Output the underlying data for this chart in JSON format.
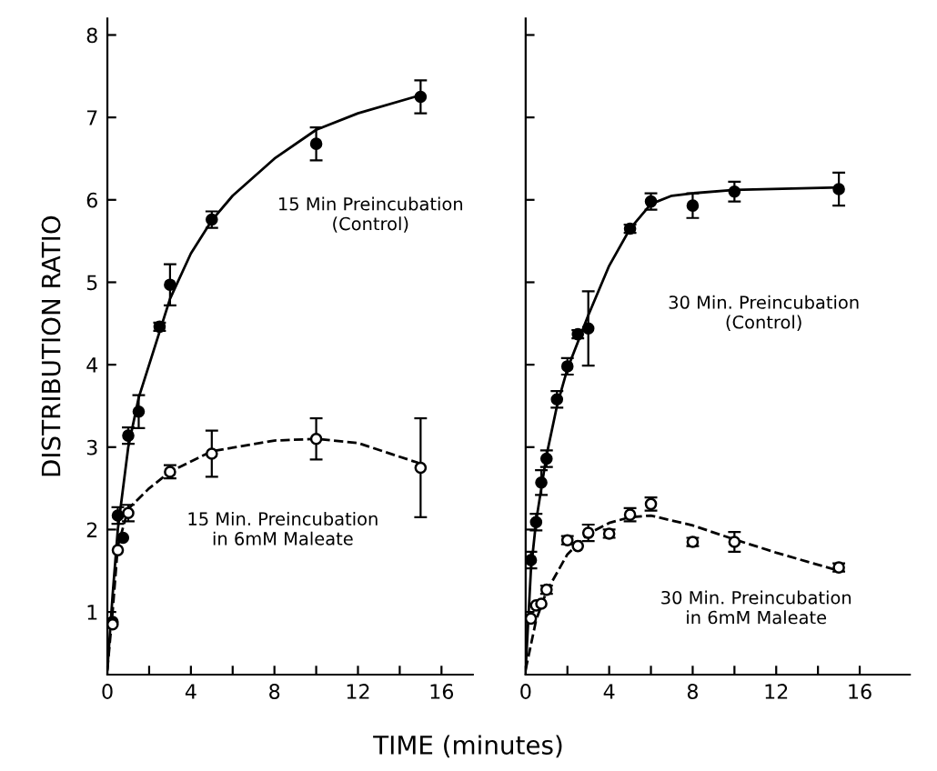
{
  "chart_data": [
    {
      "type": "scatter",
      "ylabel": "DISTRIBUTION RATIO",
      "xlabel": "TIME (minutes)",
      "xlim": [
        0,
        17.5
      ],
      "ylim": [
        0.24,
        8.2
      ],
      "xticks": [
        0,
        {
          "value": 2,
          "label": null
        },
        4,
        {
          "value": 6,
          "label": null
        },
        8,
        {
          "value": 10,
          "label": null
        },
        12,
        {
          "value": 14,
          "label": null
        },
        16
      ],
      "yticks": [
        1,
        2,
        3,
        4,
        5,
        6,
        7,
        8
      ],
      "grid": false,
      "legend": false,
      "series": [
        {
          "type": "line",
          "color": "#000000",
          "line_style": "solid",
          "marker": "none",
          "x": [
            0,
            0.25,
            0.5,
            1,
            1.5,
            2,
            3,
            4,
            5,
            6,
            8,
            10,
            12,
            15
          ],
          "values": [
            0.3,
            1.2,
            2.0,
            3.0,
            3.6,
            4.0,
            4.8,
            5.35,
            5.75,
            6.05,
            6.5,
            6.85,
            7.05,
            7.27
          ]
        },
        {
          "type": "line",
          "color": "#000000",
          "line_style": "dashed",
          "marker": "none",
          "x": [
            0,
            0.25,
            0.5,
            1,
            2,
            3,
            5,
            8,
            10,
            12,
            15
          ],
          "values": [
            0.3,
            1.0,
            1.8,
            2.25,
            2.5,
            2.7,
            2.95,
            3.08,
            3.1,
            3.05,
            2.8
          ]
        },
        {
          "color": "#000000",
          "marker": "circle",
          "x": [
            0.25,
            0.5,
            0.75,
            1,
            1.5,
            2.5,
            3,
            5,
            10,
            15
          ],
          "values": [
            0.88,
            2.17,
            1.9,
            3.14,
            3.43,
            4.46,
            4.97,
            5.76,
            6.68,
            7.25
          ],
          "errors": [
            null,
            0.1,
            null,
            0.1,
            0.2,
            0.05,
            0.25,
            0.1,
            0.2,
            0.2
          ]
        },
        {
          "color": "#ffffff",
          "marker": "circle",
          "x": [
            0.25,
            0.5,
            1,
            3,
            5,
            10,
            15
          ],
          "values": [
            0.85,
            1.75,
            2.2,
            2.7,
            2.92,
            3.1,
            2.75
          ],
          "errors": [
            null,
            null,
            0.1,
            0.08,
            0.28,
            0.25,
            0.6
          ]
        }
      ],
      "annotations": [
        "15 Min Preincubation\n(Control)",
        "15 Min. Preincubation\nin 6mM Maleate"
      ]
    },
    {
      "type": "scatter",
      "xlim": [
        0,
        18.4
      ],
      "ylim": [
        0.24,
        8.2
      ],
      "xticks": [
        0,
        {
          "value": 2,
          "label": null
        },
        4,
        {
          "value": 6,
          "label": null
        },
        8,
        {
          "value": 10,
          "label": null
        },
        12,
        {
          "value": 14,
          "label": null
        },
        16
      ],
      "yticks": [
        1,
        2,
        3,
        4,
        5,
        6,
        7,
        8
      ],
      "tick_labels": "x",
      "grid": false,
      "legend": false,
      "series": [
        {
          "type": "line",
          "color": "#000000",
          "line_style": "solid",
          "marker": "none",
          "x": [
            0,
            0.25,
            0.5,
            1,
            1.5,
            2,
            3,
            4,
            5,
            6,
            7,
            8,
            10,
            15
          ],
          "values": [
            0.3,
            1.5,
            2.1,
            2.9,
            3.5,
            3.95,
            4.6,
            5.2,
            5.65,
            5.95,
            6.05,
            6.08,
            6.12,
            6.15
          ]
        },
        {
          "type": "line",
          "color": "#000000",
          "line_style": "dashed",
          "marker": "none",
          "x": [
            0,
            0.5,
            1,
            2,
            3,
            4,
            5,
            6,
            8,
            10,
            12,
            15
          ],
          "values": [
            0.3,
            0.9,
            1.25,
            1.7,
            1.95,
            2.08,
            2.15,
            2.17,
            2.05,
            1.88,
            1.72,
            1.5
          ]
        },
        {
          "color": "#000000",
          "marker": "circle",
          "x": [
            0.25,
            0.5,
            0.75,
            1,
            1.5,
            2,
            2.5,
            3,
            5,
            6,
            8,
            10,
            15
          ],
          "values": [
            1.63,
            2.09,
            2.57,
            2.86,
            3.58,
            3.98,
            4.37,
            4.44,
            5.65,
            5.98,
            5.93,
            6.1,
            6.13
          ],
          "errors": [
            0.1,
            0.1,
            0.15,
            0.1,
            0.1,
            0.1,
            0.05,
            0.45,
            0.05,
            0.1,
            0.15,
            0.12,
            0.2
          ]
        },
        {
          "color": "#ffffff",
          "marker": "circle",
          "x": [
            0.25,
            0.5,
            0.75,
            1,
            2,
            2.5,
            3,
            4,
            5,
            6,
            8,
            10,
            15
          ],
          "values": [
            0.92,
            1.08,
            1.1,
            1.27,
            1.87,
            1.8,
            1.96,
            1.95,
            2.18,
            2.31,
            1.85,
            1.85,
            1.54
          ],
          "errors": [
            null,
            null,
            null,
            0.05,
            0.05,
            null,
            0.1,
            0.05,
            0.08,
            0.08,
            0.05,
            0.12,
            0.05
          ]
        }
      ],
      "annotations": [
        "30 Min. Preincubation\n(Control)",
        "30 Min. Preincubation\nin 6mM Maleate"
      ]
    }
  ]
}
